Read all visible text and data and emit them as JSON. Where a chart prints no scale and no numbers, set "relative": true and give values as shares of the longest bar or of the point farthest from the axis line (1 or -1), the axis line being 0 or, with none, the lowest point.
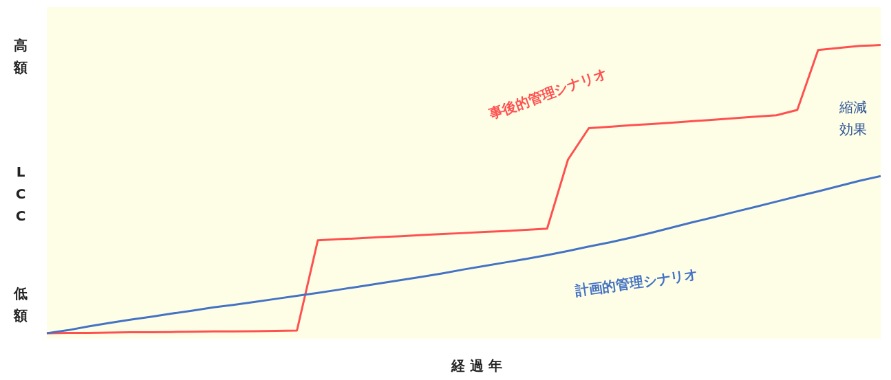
{
  "chart_data": {
    "type": "line",
    "relative": true,
    "xlabel": "経過年",
    "ylabel": "LCC",
    "grid": false,
    "categories": [
      null,
      null,
      null,
      null,
      null,
      null,
      null,
      null,
      null,
      null,
      null,
      null,
      null,
      null,
      null,
      null,
      null,
      null,
      null,
      null,
      null,
      null,
      null,
      null,
      null,
      null,
      null,
      null,
      null,
      null,
      null,
      null,
      null,
      null,
      null,
      null,
      null,
      null,
      null,
      null,
      null
    ],
    "annotations": [
      "高額",
      "低額",
      "縮減効果"
    ],
    "series": [
      {
        "name": "事後的管理シナリオ",
        "color": "#ff5050",
        "values": [
          0.019,
          0.02,
          0.02,
          0.021,
          0.022,
          0.022,
          0.023,
          0.024,
          0.025,
          0.025,
          0.026,
          0.027,
          0.028,
          0.335,
          0.339,
          0.342,
          0.346,
          0.349,
          0.353,
          0.357,
          0.36,
          0.364,
          0.367,
          0.371,
          0.375,
          0.61,
          0.717,
          0.722,
          0.727,
          0.731,
          0.736,
          0.741,
          0.746,
          0.751,
          0.756,
          0.761,
          0.779,
          0.983,
          0.99,
          0.997,
          1
        ]
      },
      {
        "name": "計画的管理シナリオ",
        "color": "#4472c4",
        "values": [
          0.019,
          0.029,
          0.042,
          0.054,
          0.065,
          0.075,
          0.086,
          0.096,
          0.107,
          0.116,
          0.126,
          0.136,
          0.146,
          0.156,
          0.167,
          0.178,
          0.189,
          0.2,
          0.211,
          0.223,
          0.236,
          0.248,
          0.26,
          0.272,
          0.285,
          0.299,
          0.314,
          0.328,
          0.344,
          0.361,
          0.379,
          0.397,
          0.414,
          0.432,
          0.449,
          0.467,
          0.485,
          0.502,
          0.52,
          0.538,
          0.554
        ]
      }
    ]
  }
}
